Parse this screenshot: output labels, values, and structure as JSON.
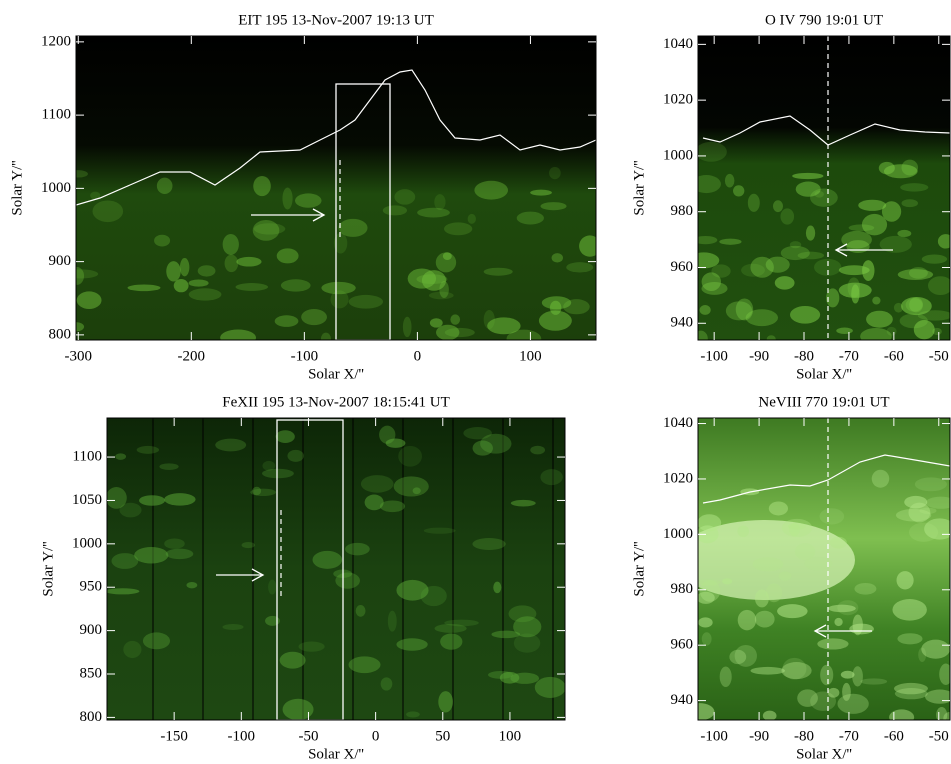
{
  "chart_data": [
    {
      "type": "image",
      "title": "EIT 195 13-Nov-2007 19:13 UT",
      "x_label": "Solar X/''",
      "y_label": "Solar Y/''",
      "xlim": [
        -302,
        158
      ],
      "ylim": [
        793,
        1208
      ],
      "xticks": [
        -300,
        -200,
        -100,
        0,
        100
      ],
      "yticks": [
        800,
        900,
        1000,
        1100,
        1200
      ]
    },
    {
      "type": "image",
      "title": "O IV 790 19:01 UT",
      "x_label": "Solar X/''",
      "y_label": "Solar Y/''",
      "xlim": [
        -103.6,
        -47.5
      ],
      "ylim": [
        934,
        1043
      ],
      "xticks": [
        -100,
        -90,
        -80,
        -70,
        -60,
        -50
      ],
      "yticks": [
        940,
        960,
        980,
        1000,
        1020,
        1040
      ]
    },
    {
      "type": "image",
      "title": "FeXII 195 13-Nov-2007 18:15:41 UT",
      "x_label": "Solar X/''",
      "y_label": "Solar Y/''",
      "xlim": [
        -200,
        141
      ],
      "ylim": [
        797,
        1145
      ],
      "xticks": [
        -150,
        -100,
        -50,
        0,
        50,
        100
      ],
      "yticks": [
        800,
        850,
        900,
        950,
        1000,
        1050,
        1100
      ]
    },
    {
      "type": "image",
      "title": "NeVIII 770 19:01 UT",
      "x_label": "Solar X/''",
      "y_label": "Solar Y/''",
      "xlim": [
        -103.6,
        -47.5
      ],
      "ylim": [
        933,
        1042
      ],
      "xticks": [
        -100,
        -90,
        -80,
        -70,
        -60,
        -50
      ],
      "yticks": [
        940,
        960,
        980,
        1000,
        1020,
        1040
      ]
    }
  ]
}
